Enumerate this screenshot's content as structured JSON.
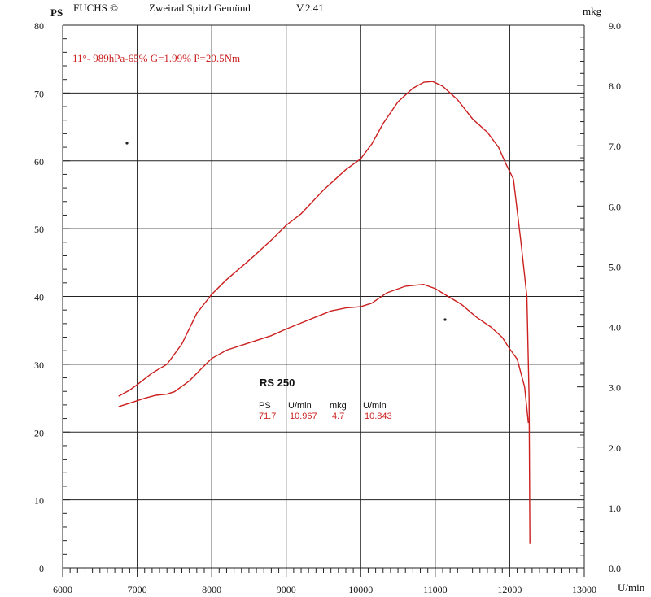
{
  "header": {
    "left_unit": "PS",
    "brand": "FUCHS ©",
    "location": "Zweirad Spitzl Gemünd",
    "version": "V.2.41",
    "right_unit": "mkg",
    "x_unit": "U/min"
  },
  "conditions": "11°- 989hPa-65% G=1.99% P=20.5Nm",
  "result_box": {
    "title": "RS 250",
    "headers": [
      "PS",
      "U/min",
      "mkg",
      "U/min"
    ],
    "values": [
      "71.7",
      "10.967",
      "4.7",
      "10.843"
    ]
  },
  "colors": {
    "curve": "#cc1f1f",
    "grid": "#222222",
    "text_accent": "#cc1f1f"
  },
  "chart_data": {
    "type": "line",
    "x_range": [
      6000,
      13000
    ],
    "x_ticks": [
      6000,
      7000,
      8000,
      9000,
      10000,
      11000,
      12000,
      13000
    ],
    "y_left_range": [
      0,
      80
    ],
    "y_left_ticks": [
      0,
      10,
      20,
      30,
      40,
      50,
      60,
      70,
      80
    ],
    "y_left_unit": "PS",
    "y_right_range": [
      0.0,
      9.0
    ],
    "y_right_ticks": [
      "0.0",
      "1.0",
      "2.0",
      "3.0",
      "4.0",
      "5.0",
      "6.0",
      "7.0",
      "8.0",
      "9.0"
    ],
    "y_right_unit": "mkg",
    "grid": true,
    "series": [
      {
        "axis": "left",
        "points": [
          [
            6750,
            25.3
          ],
          [
            6900,
            26.2
          ],
          [
            7000,
            27
          ],
          [
            7200,
            28.7
          ],
          [
            7400,
            30
          ],
          [
            7600,
            33
          ],
          [
            7800,
            37.5
          ],
          [
            8000,
            40.3
          ],
          [
            8200,
            42.5
          ],
          [
            8500,
            45.3
          ],
          [
            8800,
            48.3
          ],
          [
            9000,
            50.5
          ],
          [
            9200,
            52.2
          ],
          [
            9500,
            55.7
          ],
          [
            9800,
            58.7
          ],
          [
            10000,
            60.3
          ],
          [
            10150,
            62.5
          ],
          [
            10300,
            65.5
          ],
          [
            10500,
            68.7
          ],
          [
            10700,
            70.7
          ],
          [
            10850,
            71.6
          ],
          [
            10967,
            71.7
          ],
          [
            11100,
            71
          ],
          [
            11300,
            69
          ],
          [
            11500,
            66.2
          ],
          [
            11700,
            64.2
          ],
          [
            11850,
            62
          ],
          [
            11950,
            59.5
          ],
          [
            12050,
            57.3
          ],
          [
            12150,
            48
          ],
          [
            12230,
            40
          ],
          [
            12260,
            25
          ],
          [
            12270,
            3.5
          ]
        ]
      },
      {
        "axis": "right",
        "points": [
          [
            6750,
            2.67
          ],
          [
            6900,
            2.73
          ],
          [
            7000,
            2.77
          ],
          [
            7100,
            2.81
          ],
          [
            7250,
            2.86
          ],
          [
            7400,
            2.88
          ],
          [
            7500,
            2.92
          ],
          [
            7700,
            3.1
          ],
          [
            7900,
            3.35
          ],
          [
            8000,
            3.47
          ],
          [
            8200,
            3.61
          ],
          [
            8500,
            3.73
          ],
          [
            8800,
            3.85
          ],
          [
            9000,
            3.96
          ],
          [
            9200,
            4.06
          ],
          [
            9400,
            4.16
          ],
          [
            9600,
            4.26
          ],
          [
            9800,
            4.31
          ],
          [
            10000,
            4.33
          ],
          [
            10150,
            4.39
          ],
          [
            10350,
            4.56
          ],
          [
            10600,
            4.67
          ],
          [
            10843,
            4.7
          ],
          [
            11000,
            4.63
          ],
          [
            11200,
            4.48
          ],
          [
            11350,
            4.37
          ],
          [
            11550,
            4.16
          ],
          [
            11750,
            3.99
          ],
          [
            11900,
            3.82
          ],
          [
            12000,
            3.63
          ],
          [
            12100,
            3.46
          ],
          [
            12200,
            3.0
          ],
          [
            12250,
            2.4
          ]
        ]
      }
    ]
  }
}
